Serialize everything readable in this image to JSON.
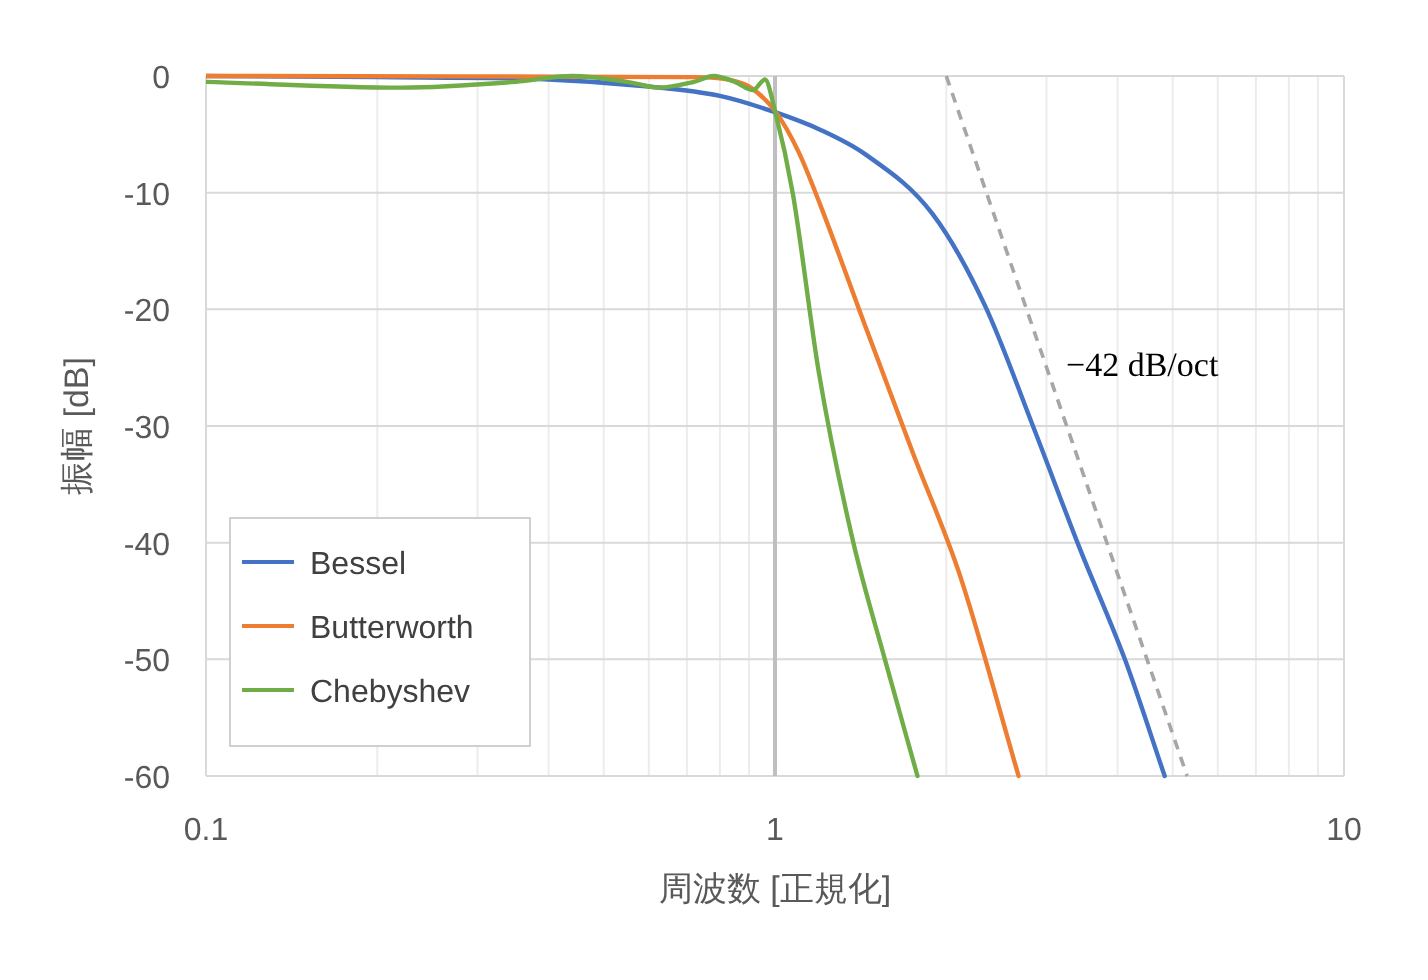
{
  "chart_data": {
    "type": "line",
    "xlabel": "周波数 [正規化]",
    "ylabel": "振幅 [dB]",
    "log": "x",
    "xlim": [
      0.1,
      10
    ],
    "ylim": [
      -60,
      0
    ],
    "xticks": [
      0.1,
      {
        "value": 0.2,
        "label": null
      },
      {
        "value": 0.3,
        "label": null
      },
      {
        "value": 0.4,
        "label": null
      },
      {
        "value": 0.5,
        "label": null
      },
      {
        "value": 0.6,
        "label": null
      },
      {
        "value": 0.7,
        "label": null
      },
      {
        "value": 0.8,
        "label": null
      },
      {
        "value": 0.9,
        "label": null
      },
      1,
      {
        "value": 2,
        "label": null
      },
      {
        "value": 3,
        "label": null
      },
      {
        "value": 4,
        "label": null
      },
      {
        "value": 5,
        "label": null
      },
      {
        "value": 6,
        "label": null
      },
      {
        "value": 7,
        "label": null
      },
      {
        "value": 8,
        "label": null
      },
      {
        "value": 9,
        "label": null
      },
      10
    ],
    "yticks": [
      0,
      -10,
      -20,
      -30,
      -40,
      -50,
      -60
    ],
    "grid": true,
    "legend": "bottom left",
    "marker": "none",
    "series": [
      {
        "name": "Bessel",
        "color": "#4472c4",
        "x": [
          0.1,
          0.2,
          0.4,
          0.6,
          0.8,
          1,
          1.2,
          1.44,
          1.89,
          2.34,
          2.84,
          3.42,
          4.12,
          4.84
        ],
        "values": [
          0,
          -0.1,
          -0.3,
          -0.9,
          -1.7,
          -3.1,
          -4.6,
          -6.7,
          -11.8,
          -19.7,
          -30,
          -40.3,
          -50,
          -60
        ]
      },
      {
        "name": "Butterworth",
        "color": "#ed7d31",
        "x": [
          0.1,
          0.7,
          0.8,
          0.9,
          1,
          1.1,
          1.2,
          1.44,
          1.75,
          2.11,
          2.68
        ],
        "values": [
          0,
          -0.1,
          -0.2,
          -0.9,
          -3,
          -6.5,
          -11,
          -21.4,
          -32.4,
          -42.7,
          -60
        ]
      },
      {
        "name": "Chebyshev",
        "color": "#70ad47",
        "x": [
          0.1,
          0.22,
          0.35,
          0.44,
          0.55,
          0.625,
          0.72,
          0.78,
          0.85,
          0.915,
          0.96,
          1,
          1.075,
          1.195,
          1.37,
          1.56,
          1.78
        ],
        "values": [
          -0.5,
          -1,
          -0.5,
          0,
          -0.5,
          -1,
          -0.5,
          0,
          -0.5,
          -1.2,
          -0.3,
          -3,
          -10.1,
          -25.5,
          -39.8,
          -50,
          -60
        ]
      },
      {
        "color": "#a6a6a6",
        "line_style": "dashed",
        "x": [
          2,
          5.3
        ],
        "values": [
          0,
          -60
        ]
      }
    ],
    "ref_lines": [
      {
        "axis": "x",
        "value": 1,
        "color": "#bfbfbf"
      }
    ],
    "annotations": [
      "−42 dB/oct"
    ]
  }
}
